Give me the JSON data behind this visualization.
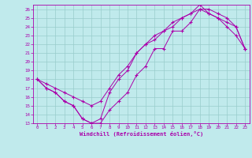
{
  "xlabel": "Windchill (Refroidissement éolien,°C)",
  "xlim": [
    -0.5,
    23.5
  ],
  "ylim": [
    13,
    26.5
  ],
  "xticks": [
    0,
    1,
    2,
    3,
    4,
    5,
    6,
    7,
    8,
    9,
    10,
    11,
    12,
    13,
    14,
    15,
    16,
    17,
    18,
    19,
    20,
    21,
    22,
    23
  ],
  "yticks": [
    13,
    14,
    15,
    16,
    17,
    18,
    19,
    20,
    21,
    22,
    23,
    24,
    25,
    26
  ],
  "bg_color": "#c0eaec",
  "line_color": "#aa00aa",
  "grid_color": "#99cccc",
  "lines": [
    {
      "x": [
        0,
        1,
        2,
        3,
        4,
        5,
        6,
        7,
        8,
        9,
        10,
        11,
        12,
        13,
        14,
        15,
        16,
        17,
        18,
        19,
        20,
        21,
        22,
        23
      ],
      "y": [
        18,
        17,
        16.5,
        15.5,
        15,
        13.5,
        13,
        13,
        14.5,
        15.5,
        16.5,
        18.5,
        19.5,
        21.5,
        21.5,
        23.5,
        23.5,
        24.5,
        26,
        25.5,
        25,
        24,
        23,
        21.5
      ]
    },
    {
      "x": [
        0,
        1,
        2,
        3,
        4,
        5,
        6,
        7,
        8,
        9,
        10,
        11,
        12,
        13,
        14,
        15,
        16,
        17,
        18,
        19,
        20,
        21,
        22,
        23
      ],
      "y": [
        18,
        17,
        16.5,
        15.5,
        15,
        13.5,
        13,
        13.5,
        16.5,
        18,
        19,
        21,
        22,
        22.5,
        23.5,
        24,
        25,
        25.5,
        26.5,
        25.5,
        25,
        24.5,
        24,
        21.5
      ]
    },
    {
      "x": [
        0,
        1,
        2,
        3,
        4,
        5,
        6,
        7,
        8,
        9,
        10,
        11,
        12,
        13,
        14,
        15,
        16,
        17,
        18,
        19,
        20,
        21,
        22,
        23
      ],
      "y": [
        18,
        17.5,
        17,
        16.5,
        16,
        15.5,
        15,
        15.5,
        17,
        18.5,
        19.5,
        21,
        22,
        23,
        23.5,
        24.5,
        25,
        25.5,
        26,
        26,
        25.5,
        25,
        24,
        21.5
      ]
    }
  ]
}
